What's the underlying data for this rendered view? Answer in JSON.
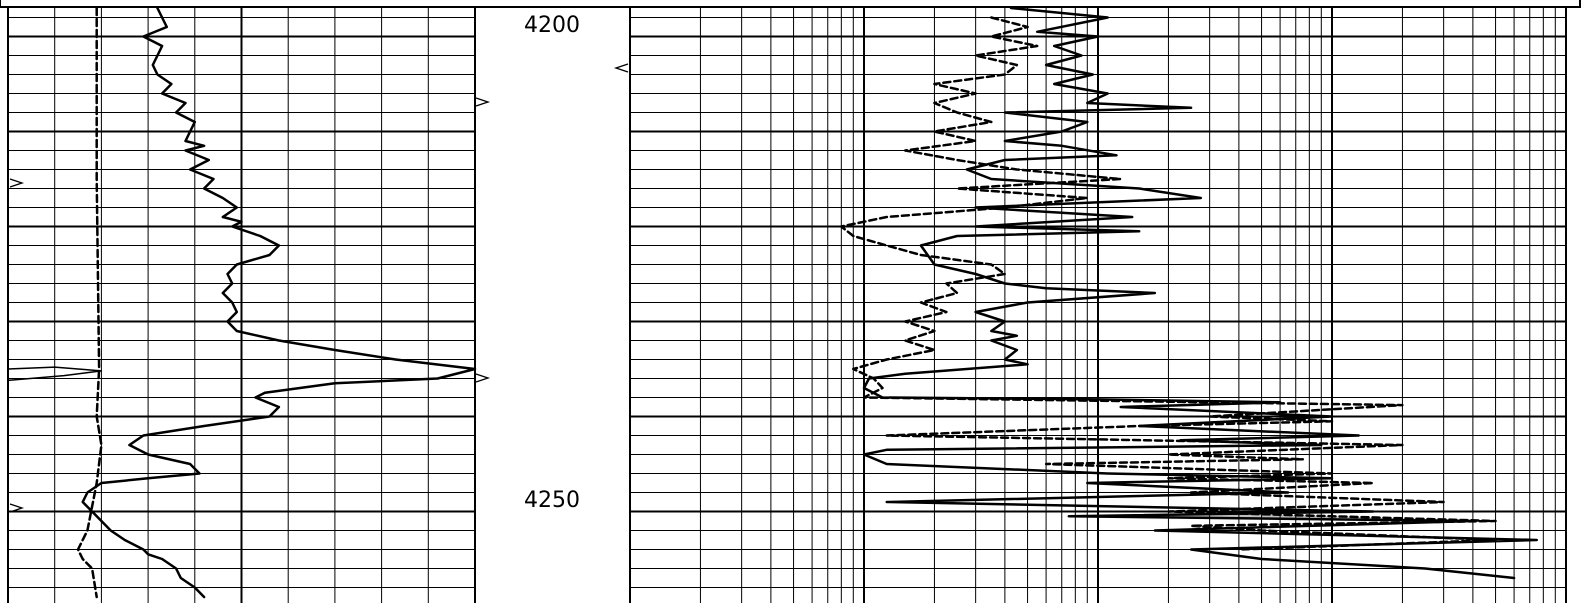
{
  "colors": {
    "background": "#ffffff",
    "grid": "#000000",
    "curve": "#000000",
    "shading": "#bdbdbd"
  },
  "chart_data": {
    "type": "line",
    "subtype": "well-log",
    "orientation": "depth-vertical",
    "depth_range": [
      4197,
      4259
    ],
    "depth_ticks": [
      {
        "depth": 4200,
        "label": "4200"
      },
      {
        "depth": 4250,
        "label": "4250"
      }
    ],
    "grid": true,
    "tracks": [
      {
        "name": "track1",
        "scale": "linear",
        "x_range": [
          0,
          10
        ],
        "series": [
          {
            "style": "dashed",
            "points": [
              [
                1.9,
                4197
              ],
              [
                1.9,
                4215
              ],
              [
                1.95,
                4235
              ],
              [
                1.9,
                4240
              ],
              [
                2.0,
                4243
              ],
              [
                1.9,
                4247
              ],
              [
                1.7,
                4252
              ],
              [
                1.5,
                4254
              ],
              [
                1.6,
                4255
              ],
              [
                1.8,
                4256
              ],
              [
                1.9,
                4259
              ]
            ]
          },
          {
            "style": "solid",
            "points": [
              [
                3.2,
                4197
              ],
              [
                3.4,
                4199
              ],
              [
                2.9,
                4200
              ],
              [
                3.3,
                4201
              ],
              [
                3.1,
                4203
              ],
              [
                3.2,
                4204
              ],
              [
                3.5,
                4205
              ],
              [
                3.3,
                4206
              ],
              [
                3.8,
                4207
              ],
              [
                3.6,
                4208
              ],
              [
                4.0,
                4209
              ],
              [
                3.9,
                4210
              ],
              [
                3.8,
                4211
              ],
              [
                4.2,
                4211.5
              ],
              [
                3.8,
                4212
              ],
              [
                4.3,
                4213
              ],
              [
                3.9,
                4214
              ],
              [
                4.4,
                4215
              ],
              [
                4.2,
                4216
              ],
              [
                4.6,
                4217
              ],
              [
                4.9,
                4218
              ],
              [
                4.6,
                4219
              ],
              [
                5.0,
                4219.5
              ],
              [
                4.8,
                4220
              ],
              [
                5.4,
                4221
              ],
              [
                5.8,
                4222
              ],
              [
                5.6,
                4223
              ],
              [
                4.9,
                4224
              ],
              [
                4.7,
                4225
              ],
              [
                4.8,
                4226
              ],
              [
                4.6,
                4227
              ],
              [
                4.8,
                4228
              ],
              [
                4.9,
                4229
              ],
              [
                4.7,
                4230
              ],
              [
                4.9,
                4231
              ],
              [
                5.8,
                4232
              ],
              [
                7.0,
                4233
              ],
              [
                8.3,
                4234
              ],
              [
                10,
                4235
              ],
              [
                9.2,
                4236
              ],
              [
                7.0,
                4236.5
              ],
              [
                5.5,
                4237.5
              ],
              [
                5.3,
                4238
              ],
              [
                5.8,
                4239
              ],
              [
                5.6,
                4240
              ],
              [
                4.2,
                4241
              ],
              [
                2.9,
                4242
              ],
              [
                2.6,
                4243
              ],
              [
                3.0,
                4244
              ],
              [
                3.9,
                4245
              ],
              [
                4.1,
                4246
              ],
              [
                3.0,
                4246.5
              ],
              [
                2.0,
                4247
              ],
              [
                1.7,
                4248
              ],
              [
                1.6,
                4249
              ],
              [
                1.8,
                4250
              ],
              [
                2.0,
                4251
              ],
              [
                2.2,
                4252
              ],
              [
                2.5,
                4253
              ],
              [
                2.9,
                4254
              ],
              [
                3.0,
                4254.5
              ],
              [
                3.3,
                4255
              ],
              [
                3.6,
                4256
              ],
              [
                3.7,
                4257
              ],
              [
                4.0,
                4258
              ],
              [
                4.2,
                4259
              ]
            ]
          },
          {
            "style": "solid-thin",
            "points": [
              [
                0,
                4235
              ],
              [
                1.0,
                4234.8
              ],
              [
                2.0,
                4235.2
              ],
              [
                1.2,
                4235.7
              ],
              [
                0,
                4236.2
              ]
            ]
          }
        ]
      },
      {
        "name": "track2",
        "scale": "logarithmic",
        "x_range": [
          0.2,
          2000
        ],
        "series": [
          {
            "style": "solid",
            "points": [
              [
                8.5,
                4197
              ],
              [
                22,
                4198
              ],
              [
                11,
                4199.5
              ],
              [
                20,
                4200
              ],
              [
                13,
                4201
              ],
              [
                17,
                4202
              ],
              [
                12,
                4203
              ],
              [
                19,
                4204
              ],
              [
                13,
                4205
              ],
              [
                22,
                4206
              ],
              [
                18,
                4207
              ],
              [
                50,
                4207.5
              ],
              [
                8,
                4208
              ],
              [
                18,
                4209
              ],
              [
                14,
                4210
              ],
              [
                8,
                4211
              ],
              [
                14,
                4211.5
              ],
              [
                24,
                4212.5
              ],
              [
                8,
                4213
              ],
              [
                5.5,
                4214
              ],
              [
                7,
                4215
              ],
              [
                30,
                4216
              ],
              [
                55,
                4217
              ],
              [
                6,
                4218
              ],
              [
                28,
                4219
              ],
              [
                6,
                4220
              ],
              [
                30,
                4220.5
              ],
              [
                5,
                4221
              ],
              [
                3.5,
                4222
              ],
              [
                4,
                4224
              ],
              [
                6,
                4225
              ],
              [
                8,
                4226
              ],
              [
                12,
                4226.5
              ],
              [
                35,
                4227
              ],
              [
                10,
                4228
              ],
              [
                6,
                4229
              ],
              [
                8,
                4230
              ],
              [
                7,
                4231
              ],
              [
                9,
                4231.5
              ],
              [
                7,
                4232
              ],
              [
                9,
                4233
              ],
              [
                8,
                4234
              ],
              [
                10,
                4234.5
              ],
              [
                3,
                4235.5
              ],
              [
                2.1,
                4236
              ],
              [
                2,
                4237
              ],
              [
                2.4,
                4238
              ],
              [
                20,
                4238.2
              ],
              [
                120,
                4238.5
              ],
              [
                25,
                4239
              ],
              [
                200,
                4240
              ],
              [
                30,
                4241
              ],
              [
                260,
                4242
              ],
              [
                45,
                4242.5
              ],
              [
                180,
                4243
              ],
              [
                2.5,
                4243.5
              ],
              [
                2,
                4244
              ],
              [
                2.5,
                4245
              ],
              [
                22,
                4246
              ],
              [
                200,
                4246.5
              ],
              [
                18,
                4247
              ],
              [
                130,
                4248
              ],
              [
                2.5,
                4249
              ],
              [
                300,
                4250
              ],
              [
                15,
                4250.5
              ],
              [
                800,
                4251
              ],
              [
                35,
                4252
              ],
              [
                1500,
                4253
              ],
              [
                50,
                4254
              ],
              [
                100,
                4255
              ],
              [
                500,
                4256
              ],
              [
                1200,
                4257
              ]
            ]
          },
          {
            "style": "dashed",
            "points": [
              [
                7,
                4198
              ],
              [
                10,
                4199
              ],
              [
                7,
                4200
              ],
              [
                11,
                4201
              ],
              [
                6,
                4202
              ],
              [
                9,
                4203
              ],
              [
                8,
                4204
              ],
              [
                4,
                4205
              ],
              [
                6,
                4206
              ],
              [
                4,
                4207
              ],
              [
                5,
                4208
              ],
              [
                7,
                4209
              ],
              [
                4,
                4210
              ],
              [
                6,
                4211
              ],
              [
                3,
                4212
              ],
              [
                5,
                4213
              ],
              [
                9,
                4214
              ],
              [
                25,
                4215
              ],
              [
                5,
                4216
              ],
              [
                18,
                4217
              ],
              [
                8,
                4218
              ],
              [
                2.5,
                4219
              ],
              [
                1.6,
                4220
              ],
              [
                1.8,
                4221
              ],
              [
                2.5,
                4222
              ],
              [
                3.5,
                4223
              ],
              [
                7,
                4224
              ],
              [
                8,
                4225
              ],
              [
                4.5,
                4226
              ],
              [
                5,
                4227
              ],
              [
                3.5,
                4228
              ],
              [
                4.5,
                4229
              ],
              [
                3,
                4230
              ],
              [
                4,
                4231
              ],
              [
                3,
                4232
              ],
              [
                4,
                4233
              ],
              [
                2.5,
                4234
              ],
              [
                1.8,
                4235
              ],
              [
                2.2,
                4236
              ],
              [
                2.4,
                4237
              ],
              [
                2,
                4238
              ],
              [
                30,
                4238.4
              ],
              [
                400,
                4238.8
              ],
              [
                60,
                4240
              ],
              [
                200,
                4240.5
              ],
              [
                30,
                4241
              ],
              [
                2.5,
                4242
              ],
              [
                400,
                4243
              ],
              [
                40,
                4244
              ],
              [
                150,
                4244.5
              ],
              [
                12,
                4245
              ],
              [
                200,
                4246
              ],
              [
                40,
                4246.5
              ],
              [
                300,
                4247
              ],
              [
                50,
                4248
              ],
              [
                600,
                4249
              ],
              [
                40,
                4250
              ],
              [
                1000,
                4251
              ],
              [
                50,
                4251.5
              ],
              [
                100,
                4252
              ],
              [
                1000,
                4253
              ],
              [
                80,
                4254
              ]
            ]
          }
        ]
      }
    ]
  }
}
